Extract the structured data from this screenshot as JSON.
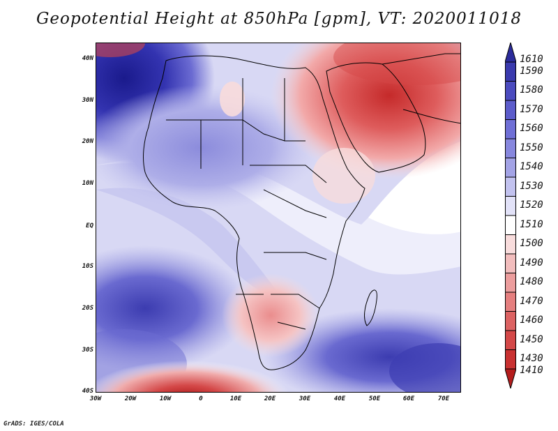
{
  "title": "Geopotential Height at 850hPa [gpm], VT: 2020011018",
  "credit": "GrADS: IGES/COLA",
  "map": {
    "lat_labels": [
      "40N",
      "30N",
      "20N",
      "10N",
      "EQ",
      "10S",
      "20S",
      "30S",
      "40S"
    ],
    "lon_labels": [
      "30W",
      "20W",
      "10W",
      "0",
      "10E",
      "20E",
      "30E",
      "40E",
      "50E",
      "60E",
      "70E"
    ],
    "colors": {
      "land_border": "#000000",
      "high_deep": "#1f1f9f",
      "neutral": "#ffffff",
      "low_deep": "#b5161e"
    }
  },
  "colorbar": {
    "labels": [
      "1610",
      "1590",
      "1580",
      "1570",
      "1560",
      "1550",
      "1540",
      "1530",
      "1520",
      "1510",
      "1500",
      "1490",
      "1480",
      "1470",
      "1460",
      "1450",
      "1430",
      "1410"
    ],
    "colors": [
      "#2b2b9b",
      "#3a3aae",
      "#4b4bbf",
      "#5c5ccb",
      "#6f6fd6",
      "#8787de",
      "#a3a3e6",
      "#c2c2ef",
      "#e2e2f8",
      "#ffffff",
      "#f8dcdc",
      "#f2bdbd",
      "#ec9d9d",
      "#e57f7f",
      "#dc6262",
      "#d44848",
      "#c93131",
      "#b51d1d"
    ]
  }
}
